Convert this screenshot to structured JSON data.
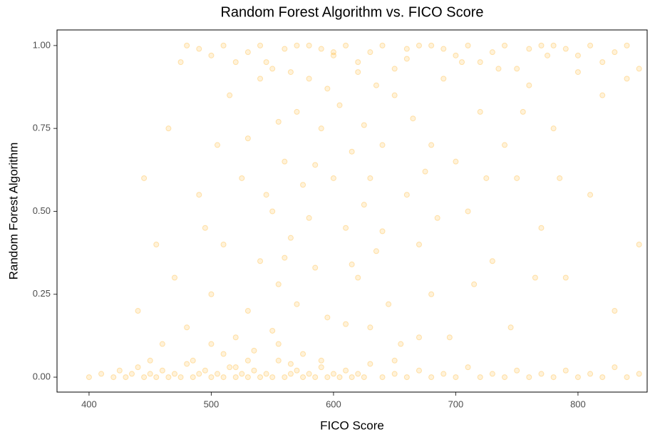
{
  "chart_data": {
    "type": "scatter",
    "title": "Random Forest Algorithm vs. FICO Score",
    "x_label": "FICO Score",
    "y_label": "Random Forest Algorithm",
    "color": "#FFA500",
    "xlim": [
      373.8,
      856.6
    ],
    "ylim": [
      -0.045,
      1.047
    ],
    "xticks": [
      400,
      500,
      600,
      700,
      800
    ],
    "yticks": [
      {
        "value": 0,
        "label": "0.00"
      },
      {
        "value": 0.25,
        "label": "0.25"
      },
      {
        "value": 0.5,
        "label": "0.50"
      },
      {
        "value": 0.75,
        "label": "0.75"
      },
      {
        "value": 1,
        "label": "1.00"
      }
    ],
    "grid": false,
    "x": [
      400,
      410,
      420,
      425,
      430,
      435,
      440,
      445,
      450,
      455,
      460,
      465,
      470,
      475,
      480,
      485,
      490,
      495,
      500,
      505,
      510,
      515,
      520,
      525,
      530,
      535,
      540,
      545,
      550,
      555,
      560,
      565,
      570,
      575,
      580,
      585,
      590,
      595,
      600,
      605,
      610,
      615,
      620,
      625,
      630,
      640,
      650,
      660,
      670,
      680,
      690,
      700,
      710,
      720,
      730,
      740,
      750,
      760,
      770,
      780,
      790,
      800,
      810,
      820,
      830,
      840,
      850,
      480,
      490,
      500,
      510,
      520,
      530,
      540,
      550,
      560,
      570,
      580,
      590,
      600,
      610,
      620,
      630,
      640,
      650,
      660,
      670,
      680,
      690,
      700,
      710,
      720,
      730,
      740,
      750,
      760,
      770,
      780,
      790,
      800,
      810,
      820,
      830,
      840,
      850,
      520,
      530,
      540,
      550,
      560,
      570,
      580,
      590,
      600,
      610,
      620,
      630,
      640,
      650,
      660,
      670,
      680,
      690,
      700,
      710,
      720,
      730,
      740,
      750,
      760,
      770,
      780,
      790,
      800,
      810,
      820,
      830,
      840,
      850,
      450,
      460,
      470,
      480,
      490,
      500,
      505,
      510,
      515,
      525,
      535,
      545,
      555,
      565,
      575,
      585,
      595,
      605,
      615,
      625,
      635,
      645,
      655,
      665,
      675,
      685,
      695,
      705,
      715,
      725,
      735,
      745,
      755,
      765,
      775,
      785,
      440,
      445,
      455,
      465,
      475,
      485,
      495,
      530,
      540,
      550,
      560,
      570,
      580,
      590,
      600,
      610,
      620,
      630,
      640,
      650,
      660,
      670,
      680,
      545,
      555,
      565,
      575,
      585,
      595,
      615,
      625,
      635,
      555,
      565,
      520,
      510,
      500,
      530
    ],
    "values": [
      0,
      0.01,
      0,
      0.02,
      0,
      0.01,
      0.03,
      0,
      0.01,
      0,
      0.02,
      0,
      0.01,
      0,
      0.04,
      0,
      0.01,
      0.02,
      0,
      0.01,
      0,
      0.03,
      0,
      0.01,
      0,
      0.02,
      0,
      0.01,
      0,
      0.05,
      0,
      0.01,
      0.02,
      0,
      0.01,
      0,
      0.03,
      0,
      0.01,
      0,
      0.02,
      0,
      0.01,
      0,
      0.04,
      0,
      0.01,
      0,
      0.02,
      0,
      0.01,
      0,
      0.03,
      0,
      0.01,
      0,
      0.02,
      0,
      0.01,
      0,
      0.02,
      0,
      0.01,
      0,
      0.03,
      0,
      0.01,
      1,
      0.99,
      0.97,
      1,
      0.95,
      0.98,
      1,
      0.93,
      0.99,
      1,
      1,
      0.99,
      0.97,
      1,
      0.95,
      0.98,
      1,
      0.93,
      0.99,
      1,
      1,
      0.99,
      0.97,
      1,
      0.95,
      0.98,
      1,
      0.93,
      0.99,
      1,
      1,
      0.99,
      0.97,
      1,
      0.95,
      0.98,
      1,
      0.93,
      0.12,
      0.2,
      0.35,
      0.5,
      0.65,
      0.8,
      0.9,
      0.75,
      0.6,
      0.45,
      0.3,
      0.15,
      0.7,
      0.85,
      0.55,
      0.4,
      0.25,
      0.9,
      0.65,
      0.5,
      0.8,
      0.35,
      0.7,
      0.6,
      0.88,
      0.45,
      0.75,
      0.3,
      0.92,
      0.55,
      0.85,
      0.2,
      0.9,
      0.4,
      0.05,
      0.1,
      0.3,
      0.15,
      0.55,
      0.25,
      0.7,
      0.4,
      0.85,
      0.6,
      0.08,
      0.95,
      0.28,
      0.42,
      0.58,
      0.33,
      0.18,
      0.82,
      0.68,
      0.52,
      0.38,
      0.22,
      0.1,
      0.78,
      0.62,
      0.48,
      0.12,
      0.95,
      0.28,
      0.6,
      0.93,
      0.15,
      0.8,
      0.3,
      0.97,
      0.6,
      0.2,
      0.6,
      0.4,
      0.75,
      0.95,
      0.05,
      0.45,
      0.72,
      0.9,
      0.14,
      0.36,
      0.22,
      0.48,
      0.05,
      0.98,
      0.16,
      0.92,
      0.6,
      0.44,
      0.05,
      0.96,
      0.12,
      0.7,
      0.55,
      0.77,
      0.92,
      0.07,
      0.64,
      0.87,
      0.34,
      0.76,
      0.88,
      0.1,
      0.04,
      0.03,
      0.07,
      0.1,
      0.05
    ]
  }
}
